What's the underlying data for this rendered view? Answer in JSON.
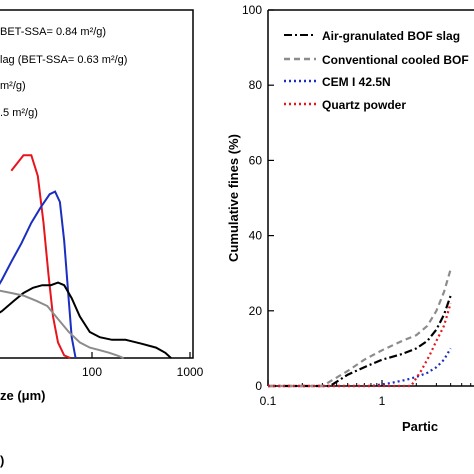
{
  "chart_data": [
    {
      "type": "line",
      "xscale": "log",
      "xlim": [
        1,
        1000
      ],
      "xlabel_fragment": "ze (μm)",
      "tick_labels": [
        "100",
        "1000"
      ],
      "panel_label_fragment": ")",
      "legend": [
        {
          "text": "BET-SSA= 0.84 m²/g)"
        },
        {
          "text": "lag (BET-SSA= 0.63 m²/g)"
        },
        {
          "text": " m²/g)"
        },
        {
          "text": ".5 m²/g)"
        }
      ],
      "series": [
        {
          "color": "#e8141c",
          "x": [
            15,
            20,
            24,
            28,
            32,
            36,
            40,
            45,
            52,
            60
          ],
          "y": [
            0.72,
            0.78,
            0.78,
            0.7,
            0.52,
            0.32,
            0.16,
            0.06,
            0.01,
            0
          ]
        },
        {
          "color": "#1a2fc0",
          "x": [
            8,
            10,
            12,
            15,
            19,
            24,
            30,
            37,
            42,
            47,
            52,
            58,
            62,
            68
          ],
          "y": [
            0.2,
            0.25,
            0.3,
            0.37,
            0.44,
            0.52,
            0.58,
            0.63,
            0.64,
            0.6,
            0.45,
            0.22,
            0.08,
            0
          ]
        },
        {
          "color": "#000000",
          "x": [
            8,
            12,
            16,
            20,
            25,
            31,
            38,
            45,
            52,
            62,
            75,
            95,
            120,
            160,
            220,
            320,
            450,
            560,
            640
          ],
          "y": [
            0.14,
            0.18,
            0.22,
            0.25,
            0.27,
            0.28,
            0.28,
            0.29,
            0.28,
            0.23,
            0.16,
            0.1,
            0.08,
            0.07,
            0.07,
            0.055,
            0.04,
            0.02,
            0
          ]
        },
        {
          "color": "#8c8c8c",
          "x": [
            8,
            11,
            15,
            20,
            27,
            35,
            45,
            58,
            75,
            95,
            120,
            150,
            180,
            210
          ],
          "y": [
            0.28,
            0.26,
            0.25,
            0.24,
            0.22,
            0.2,
            0.15,
            0.1,
            0.06,
            0.04,
            0.03,
            0.02,
            0.01,
            0
          ]
        }
      ]
    },
    {
      "type": "line",
      "xscale": "log",
      "xlim": [
        0.1,
        10
      ],
      "ylim": [
        0,
        100
      ],
      "ylabel": "Cumulative fines (%)",
      "xlabel_fragment": "Partic",
      "x_tick_labels": [
        "0.1",
        "1"
      ],
      "y_tick_labels": [
        "0",
        "20",
        "40",
        "60",
        "80",
        "100"
      ],
      "legend": [
        {
          "text": "Air-granulated BOF slag"
        },
        {
          "text": "Conventional cooled BOF"
        },
        {
          "text": "CEM I 42.5N"
        },
        {
          "text": "Quartz powder"
        }
      ],
      "series": [
        {
          "name": "Air-granulated BOF slag",
          "color": "#000000",
          "dash": "dashdot",
          "x": [
            0.1,
            0.35,
            0.5,
            0.7,
            1.0,
            1.5,
            2.0,
            2.5,
            3.0,
            3.5,
            4.0
          ],
          "y": [
            0,
            0,
            3,
            5,
            7,
            8.5,
            10,
            12,
            15,
            19,
            24
          ]
        },
        {
          "name": "Conventional cooled BOF",
          "color": "#8c8c8c",
          "dash": "dash",
          "x": [
            0.1,
            0.3,
            0.5,
            0.7,
            1.0,
            1.5,
            2.0,
            2.5,
            3.0,
            3.5,
            4.0
          ],
          "y": [
            0,
            0,
            4,
            7,
            9.5,
            12,
            13.5,
            16,
            20,
            25,
            31
          ]
        },
        {
          "name": "CEM I 42.5N",
          "color": "#1a2fc0",
          "dash": "dot",
          "x": [
            0.1,
            0.8,
            1.2,
            1.6,
            2.0,
            2.5,
            3.0,
            3.5,
            4.0
          ],
          "y": [
            0,
            0,
            0.8,
            1.6,
            2.4,
            3.5,
            5,
            7,
            10
          ]
        },
        {
          "name": "Quartz powder",
          "color": "#e8141c",
          "dash": "dot",
          "x": [
            0.1,
            1.8,
            2.2,
            2.6,
            3.0,
            3.5,
            4.0
          ],
          "y": [
            0,
            0,
            4,
            8,
            12,
            16,
            22
          ]
        }
      ]
    }
  ]
}
